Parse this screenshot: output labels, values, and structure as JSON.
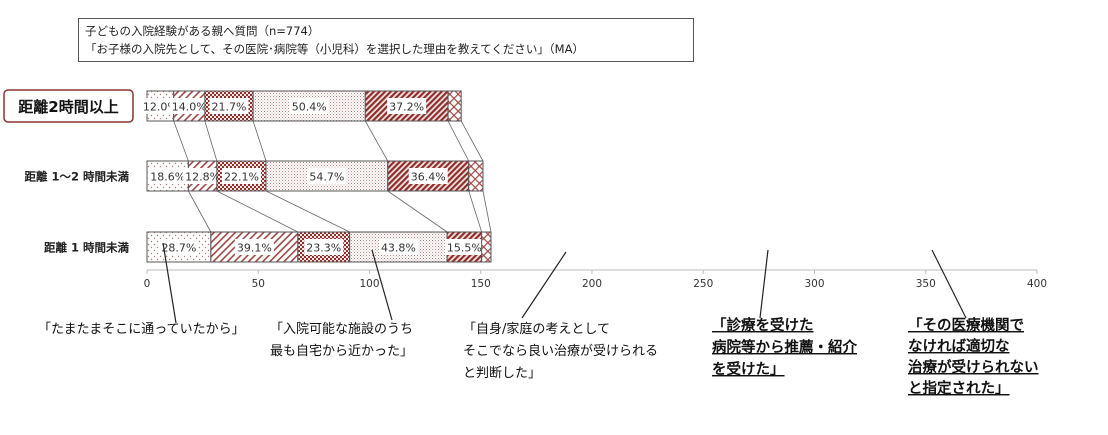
{
  "question": {
    "line1": "子どもの入院経験がある親へ質問（n=774）",
    "line2": "「お子様の入院先として、その医院･病院等（小児科）を選択した理由を教えてください」（MA）"
  },
  "chart_data": {
    "type": "bar",
    "orientation": "horizontal",
    "stacked": true,
    "xlim": [
      0,
      400
    ],
    "xticks": [
      0,
      50,
      100,
      150,
      200,
      250,
      300,
      350,
      400
    ],
    "categories": [
      "距離2時間以上",
      "距離 1～2 時間未満",
      "距離 1 時間未満"
    ],
    "highlighted_category": "距離2時間以上",
    "series": [
      {
        "name": "「たまたまそこに通っていたから」",
        "values": [
          12.0,
          18.6,
          28.7
        ],
        "labels": [
          "12.0%",
          "18.6%",
          "28.7%"
        ],
        "pattern": "dots",
        "color": "#c9a29f"
      },
      {
        "name": "「入院可能な施設のうち最も自宅から近かった」",
        "values": [
          14.0,
          12.8,
          39.1
        ],
        "labels": [
          "14.0%",
          "12.8%",
          "39.1%"
        ],
        "pattern": "diag",
        "color": "#a5605c"
      },
      {
        "name": "「自身/家庭の考えとしてそこでなら良い治療が受けられると判断した」",
        "values": [
          21.7,
          22.1,
          23.3
        ],
        "labels": [
          "21.7%",
          "22.1%",
          "23.3%"
        ],
        "pattern": "check",
        "color": "#9b3f3b"
      },
      {
        "name": "「診療を受けた病院等から推薦・紹介を受けた」",
        "values": [
          50.4,
          54.7,
          43.8
        ],
        "labels": [
          "50.4%",
          "54.7%",
          "43.8%"
        ],
        "pattern": "fine",
        "color": "#b88f8c"
      },
      {
        "name": "「その医療機関でなければ適切な治療が受けられないと指定された」",
        "values": [
          37.2,
          36.4,
          15.5
        ],
        "labels": [
          "37.2%",
          "36.4%",
          "15.5%"
        ],
        "pattern": "dense-diag",
        "color": "#8c3532"
      },
      {
        "name": "",
        "values": [
          5.9,
          6.4,
          4.2
        ],
        "labels": [
          "",
          "",
          ""
        ],
        "pattern": "cross",
        "color": "#a7504c"
      }
    ]
  },
  "annotations": [
    {
      "lines": [
        "「たまたまそこに通っていたから」"
      ],
      "bold": false,
      "series": 0
    },
    {
      "lines": [
        "「入院可能な施設のうち",
        "最も自宅から近かった」"
      ],
      "bold": false,
      "series": 1
    },
    {
      "lines": [
        "「自身/家庭の考えとして",
        "そこでなら良い治療が受けられる",
        "と判断した」"
      ],
      "bold": false,
      "series": 2
    },
    {
      "lines": [
        "「診療を受けた",
        "病院等から推薦・紹介",
        "を受けた」"
      ],
      "bold": true,
      "series": 3
    },
    {
      "lines": [
        "「その医療機関で",
        "なければ適切な",
        "治療が受けられない",
        "と指定された」"
      ],
      "bold": true,
      "series": 4
    }
  ]
}
